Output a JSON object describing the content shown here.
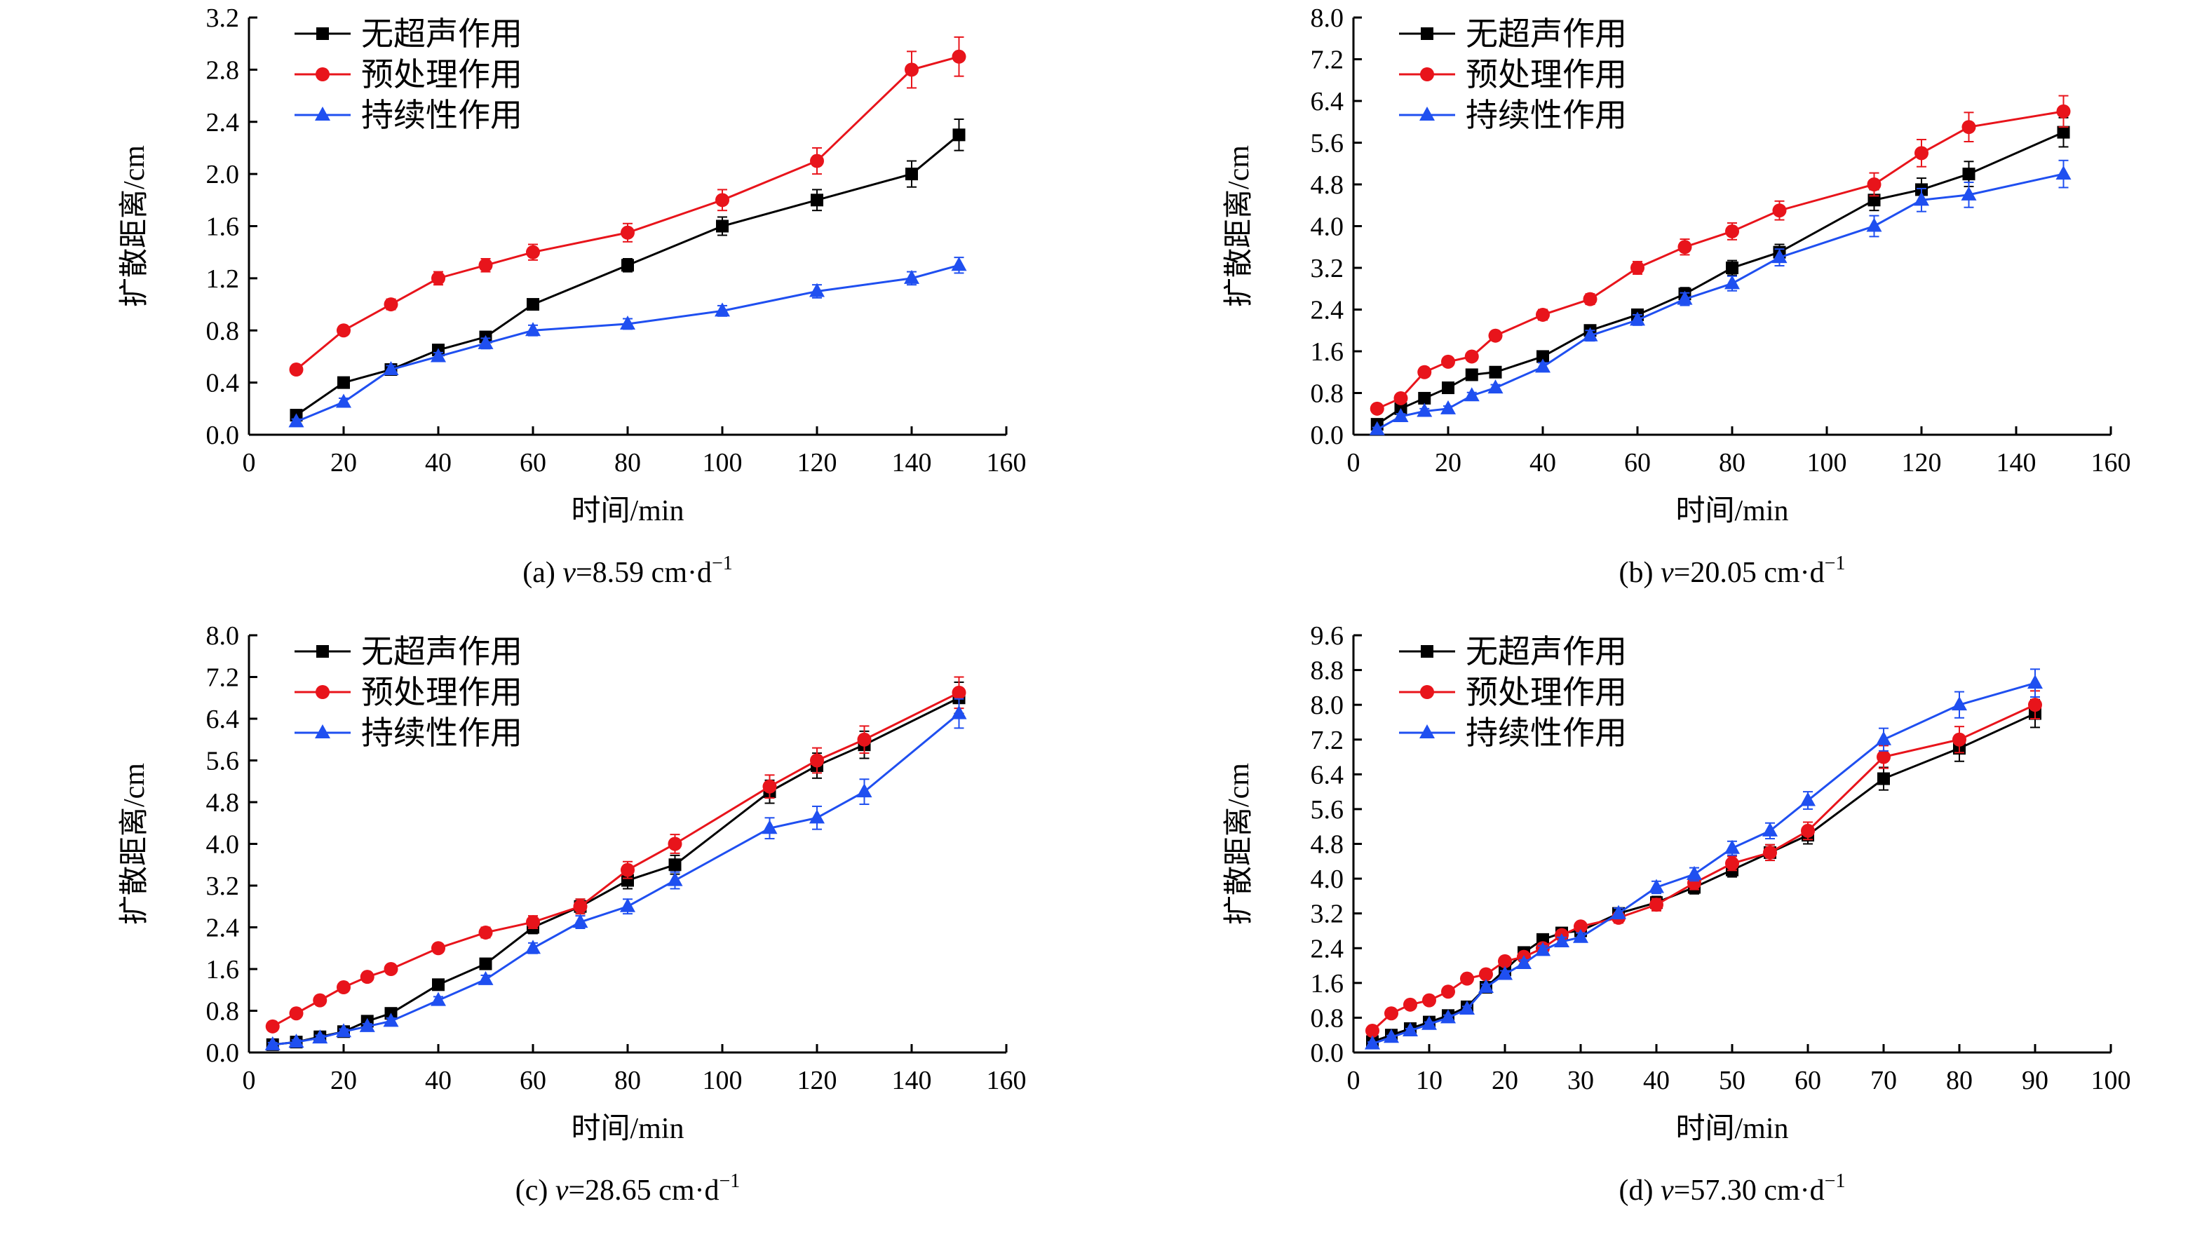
{
  "series_styles": [
    {
      "color": "#000000",
      "marker": "square"
    },
    {
      "color": "#e8141b",
      "marker": "circle"
    },
    {
      "color": "#1f4ff0",
      "marker": "triangle"
    }
  ],
  "chart_data": [
    {
      "type": "line",
      "caption_prefix": "(a) ",
      "caption_var": "v",
      "caption_suffix": "=8.59 cm·d",
      "caption_sup": "−1",
      "xlabel": "时间/min",
      "ylabel": "扩散距离/cm",
      "xlim": [
        0,
        160
      ],
      "ylim": [
        0,
        3.2
      ],
      "xticks": [
        0,
        20,
        40,
        60,
        80,
        100,
        120,
        140,
        160
      ],
      "yticks": [
        0.0,
        0.4,
        0.8,
        1.2,
        1.6,
        2.0,
        2.4,
        2.8,
        3.2
      ],
      "legend_position": "top-left",
      "series": [
        {
          "name": "无超声作用",
          "x": [
            10,
            20,
            30,
            40,
            50,
            60,
            80,
            100,
            120,
            140,
            150
          ],
          "y": [
            0.15,
            0.4,
            0.5,
            0.65,
            0.75,
            1.0,
            1.3,
            1.6,
            1.8,
            2.0,
            2.3
          ],
          "err": [
            0.03,
            0.03,
            0.03,
            0.04,
            0.04,
            0.04,
            0.05,
            0.07,
            0.08,
            0.1,
            0.12
          ]
        },
        {
          "name": "预处理作用",
          "x": [
            10,
            20,
            30,
            40,
            50,
            60,
            80,
            100,
            120,
            140,
            150
          ],
          "y": [
            0.5,
            0.8,
            1.0,
            1.2,
            1.3,
            1.4,
            1.55,
            1.8,
            2.1,
            2.8,
            2.9
          ],
          "err": [
            0.03,
            0.03,
            0.04,
            0.05,
            0.05,
            0.06,
            0.07,
            0.08,
            0.1,
            0.14,
            0.15
          ]
        },
        {
          "name": "持续性作用",
          "x": [
            10,
            20,
            30,
            40,
            50,
            60,
            80,
            100,
            120,
            140,
            150
          ],
          "y": [
            0.1,
            0.25,
            0.5,
            0.6,
            0.7,
            0.8,
            0.85,
            0.95,
            1.1,
            1.2,
            1.3
          ],
          "err": [
            0.02,
            0.03,
            0.03,
            0.03,
            0.04,
            0.04,
            0.04,
            0.04,
            0.05,
            0.05,
            0.06
          ]
        }
      ]
    },
    {
      "type": "line",
      "caption_prefix": "(b) ",
      "caption_var": "v",
      "caption_suffix": "=20.05 cm·d",
      "caption_sup": "−1",
      "xlabel": "时间/min",
      "ylabel": "扩散距离/cm",
      "xlim": [
        0,
        160
      ],
      "ylim": [
        0,
        8.0
      ],
      "xticks": [
        0,
        20,
        40,
        60,
        80,
        100,
        120,
        140,
        160
      ],
      "yticks": [
        0.0,
        0.8,
        1.6,
        2.4,
        3.2,
        4.0,
        4.8,
        5.6,
        6.4,
        7.2,
        8.0
      ],
      "legend_position": "top-left",
      "series": [
        {
          "name": "无超声作用",
          "x": [
            5,
            10,
            15,
            20,
            25,
            30,
            40,
            50,
            60,
            70,
            80,
            90,
            110,
            120,
            130,
            150
          ],
          "y": [
            0.2,
            0.5,
            0.7,
            0.9,
            1.15,
            1.2,
            1.5,
            2.0,
            2.3,
            2.7,
            3.2,
            3.5,
            4.5,
            4.7,
            5.0,
            5.8
          ],
          "err": [
            0.05,
            0.05,
            0.05,
            0.06,
            0.06,
            0.07,
            0.08,
            0.1,
            0.1,
            0.12,
            0.14,
            0.15,
            0.2,
            0.22,
            0.24,
            0.28
          ]
        },
        {
          "name": "预处理作用",
          "x": [
            5,
            10,
            15,
            20,
            25,
            30,
            40,
            50,
            60,
            70,
            80,
            90,
            110,
            120,
            130,
            150
          ],
          "y": [
            0.5,
            0.7,
            1.2,
            1.4,
            1.5,
            1.9,
            2.3,
            2.6,
            3.2,
            3.6,
            3.9,
            4.3,
            4.8,
            5.4,
            5.9,
            6.2
          ],
          "err": [
            0.05,
            0.06,
            0.06,
            0.07,
            0.07,
            0.08,
            0.1,
            0.1,
            0.12,
            0.15,
            0.16,
            0.18,
            0.22,
            0.26,
            0.28,
            0.3
          ]
        },
        {
          "name": "持续性作用",
          "x": [
            5,
            10,
            15,
            20,
            25,
            30,
            40,
            50,
            60,
            70,
            80,
            90,
            110,
            120,
            130,
            150
          ],
          "y": [
            0.1,
            0.35,
            0.45,
            0.5,
            0.75,
            0.9,
            1.3,
            1.9,
            2.2,
            2.6,
            2.9,
            3.4,
            4.0,
            4.5,
            4.6,
            5.0
          ],
          "err": [
            0.04,
            0.05,
            0.05,
            0.05,
            0.06,
            0.06,
            0.08,
            0.1,
            0.1,
            0.12,
            0.14,
            0.16,
            0.2,
            0.22,
            0.24,
            0.26
          ]
        }
      ]
    },
    {
      "type": "line",
      "caption_prefix": "(c) ",
      "caption_var": "v",
      "caption_suffix": "=28.65 cm·d",
      "caption_sup": "−1",
      "xlabel": "时间/min",
      "ylabel": "扩散距离/cm",
      "xlim": [
        0,
        160
      ],
      "ylim": [
        0,
        8.0
      ],
      "xticks": [
        0,
        20,
        40,
        60,
        80,
        100,
        120,
        140,
        160
      ],
      "yticks": [
        0.0,
        0.8,
        1.6,
        2.4,
        3.2,
        4.0,
        4.8,
        5.6,
        6.4,
        7.2,
        8.0
      ],
      "legend_position": "top-left",
      "series": [
        {
          "name": "无超声作用",
          "x": [
            5,
            10,
            15,
            20,
            25,
            30,
            40,
            50,
            60,
            70,
            80,
            90,
            110,
            120,
            130,
            150
          ],
          "y": [
            0.15,
            0.2,
            0.3,
            0.4,
            0.6,
            0.75,
            1.3,
            1.7,
            2.4,
            2.8,
            3.3,
            3.6,
            5.0,
            5.5,
            5.9,
            6.8
          ],
          "err": [
            0.04,
            0.04,
            0.05,
            0.05,
            0.06,
            0.06,
            0.08,
            0.1,
            0.12,
            0.14,
            0.16,
            0.18,
            0.22,
            0.24,
            0.26,
            0.3
          ]
        },
        {
          "name": "预处理作用",
          "x": [
            5,
            10,
            15,
            20,
            25,
            30,
            40,
            50,
            60,
            70,
            80,
            90,
            110,
            120,
            130,
            150
          ],
          "y": [
            0.5,
            0.75,
            1.0,
            1.25,
            1.45,
            1.6,
            2.0,
            2.3,
            2.5,
            2.8,
            3.5,
            4.0,
            5.1,
            5.6,
            6.0,
            6.9
          ],
          "err": [
            0.05,
            0.05,
            0.06,
            0.06,
            0.07,
            0.07,
            0.08,
            0.1,
            0.12,
            0.14,
            0.16,
            0.18,
            0.22,
            0.24,
            0.26,
            0.3
          ]
        },
        {
          "name": "持续性作用",
          "x": [
            5,
            10,
            15,
            20,
            25,
            30,
            40,
            50,
            60,
            70,
            80,
            90,
            110,
            120,
            130,
            150
          ],
          "y": [
            0.15,
            0.2,
            0.28,
            0.4,
            0.5,
            0.6,
            1.0,
            1.4,
            2.0,
            2.5,
            2.8,
            3.3,
            4.3,
            4.5,
            5.0,
            6.5
          ],
          "err": [
            0.04,
            0.04,
            0.05,
            0.05,
            0.05,
            0.06,
            0.07,
            0.08,
            0.1,
            0.12,
            0.14,
            0.16,
            0.2,
            0.22,
            0.24,
            0.28
          ]
        }
      ]
    },
    {
      "type": "line",
      "caption_prefix": "(d) ",
      "caption_var": "v",
      "caption_suffix": "=57.30 cm·d",
      "caption_sup": "−1",
      "xlabel": "时间/min",
      "ylabel": "扩散距离/cm",
      "xlim": [
        0,
        100
      ],
      "ylim": [
        0,
        9.6
      ],
      "xticks": [
        0,
        10,
        20,
        30,
        40,
        50,
        60,
        70,
        80,
        90,
        100
      ],
      "yticks": [
        0.0,
        0.8,
        1.6,
        2.4,
        3.2,
        4.0,
        4.8,
        5.6,
        6.4,
        7.2,
        8.0,
        8.8,
        9.6
      ],
      "legend_position": "top-left",
      "series": [
        {
          "name": "无超声作用",
          "x": [
            2.5,
            5,
            7.5,
            10,
            12.5,
            15,
            17.5,
            20,
            22.5,
            25,
            27.5,
            30,
            35,
            40,
            45,
            50,
            55,
            60,
            70,
            80,
            90
          ],
          "y": [
            0.25,
            0.4,
            0.55,
            0.7,
            0.85,
            1.05,
            1.5,
            1.9,
            2.3,
            2.6,
            2.75,
            2.8,
            3.2,
            3.45,
            3.8,
            4.2,
            4.6,
            5.0,
            6.3,
            7.0,
            7.8
          ],
          "err": [
            0.04,
            0.04,
            0.05,
            0.05,
            0.06,
            0.06,
            0.07,
            0.08,
            0.08,
            0.1,
            0.1,
            0.1,
            0.12,
            0.14,
            0.15,
            0.16,
            0.18,
            0.2,
            0.26,
            0.3,
            0.32
          ]
        },
        {
          "name": "预处理作用",
          "x": [
            2.5,
            5,
            7.5,
            10,
            12.5,
            15,
            17.5,
            20,
            22.5,
            25,
            27.5,
            30,
            35,
            40,
            45,
            50,
            55,
            60,
            70,
            80,
            90
          ],
          "y": [
            0.5,
            0.9,
            1.1,
            1.2,
            1.4,
            1.7,
            1.8,
            2.1,
            2.2,
            2.4,
            2.7,
            2.9,
            3.1,
            3.4,
            3.9,
            4.35,
            4.6,
            5.1,
            6.8,
            7.2,
            8.0
          ],
          "err": [
            0.04,
            0.05,
            0.05,
            0.05,
            0.06,
            0.06,
            0.07,
            0.08,
            0.08,
            0.1,
            0.1,
            0.1,
            0.12,
            0.14,
            0.15,
            0.16,
            0.18,
            0.2,
            0.26,
            0.3,
            0.32
          ]
        },
        {
          "name": "持续性作用",
          "x": [
            2.5,
            5,
            7.5,
            10,
            12.5,
            15,
            17.5,
            20,
            22.5,
            25,
            27.5,
            30,
            35,
            40,
            45,
            50,
            55,
            60,
            70,
            80,
            90
          ],
          "y": [
            0.2,
            0.35,
            0.5,
            0.65,
            0.8,
            1.0,
            1.5,
            1.8,
            2.05,
            2.35,
            2.55,
            2.65,
            3.2,
            3.8,
            4.1,
            4.7,
            5.1,
            5.8,
            7.2,
            8.0,
            8.5
          ],
          "err": [
            0.04,
            0.04,
            0.05,
            0.05,
            0.06,
            0.06,
            0.07,
            0.08,
            0.08,
            0.1,
            0.1,
            0.1,
            0.12,
            0.14,
            0.15,
            0.16,
            0.18,
            0.2,
            0.26,
            0.3,
            0.32
          ]
        }
      ]
    }
  ]
}
